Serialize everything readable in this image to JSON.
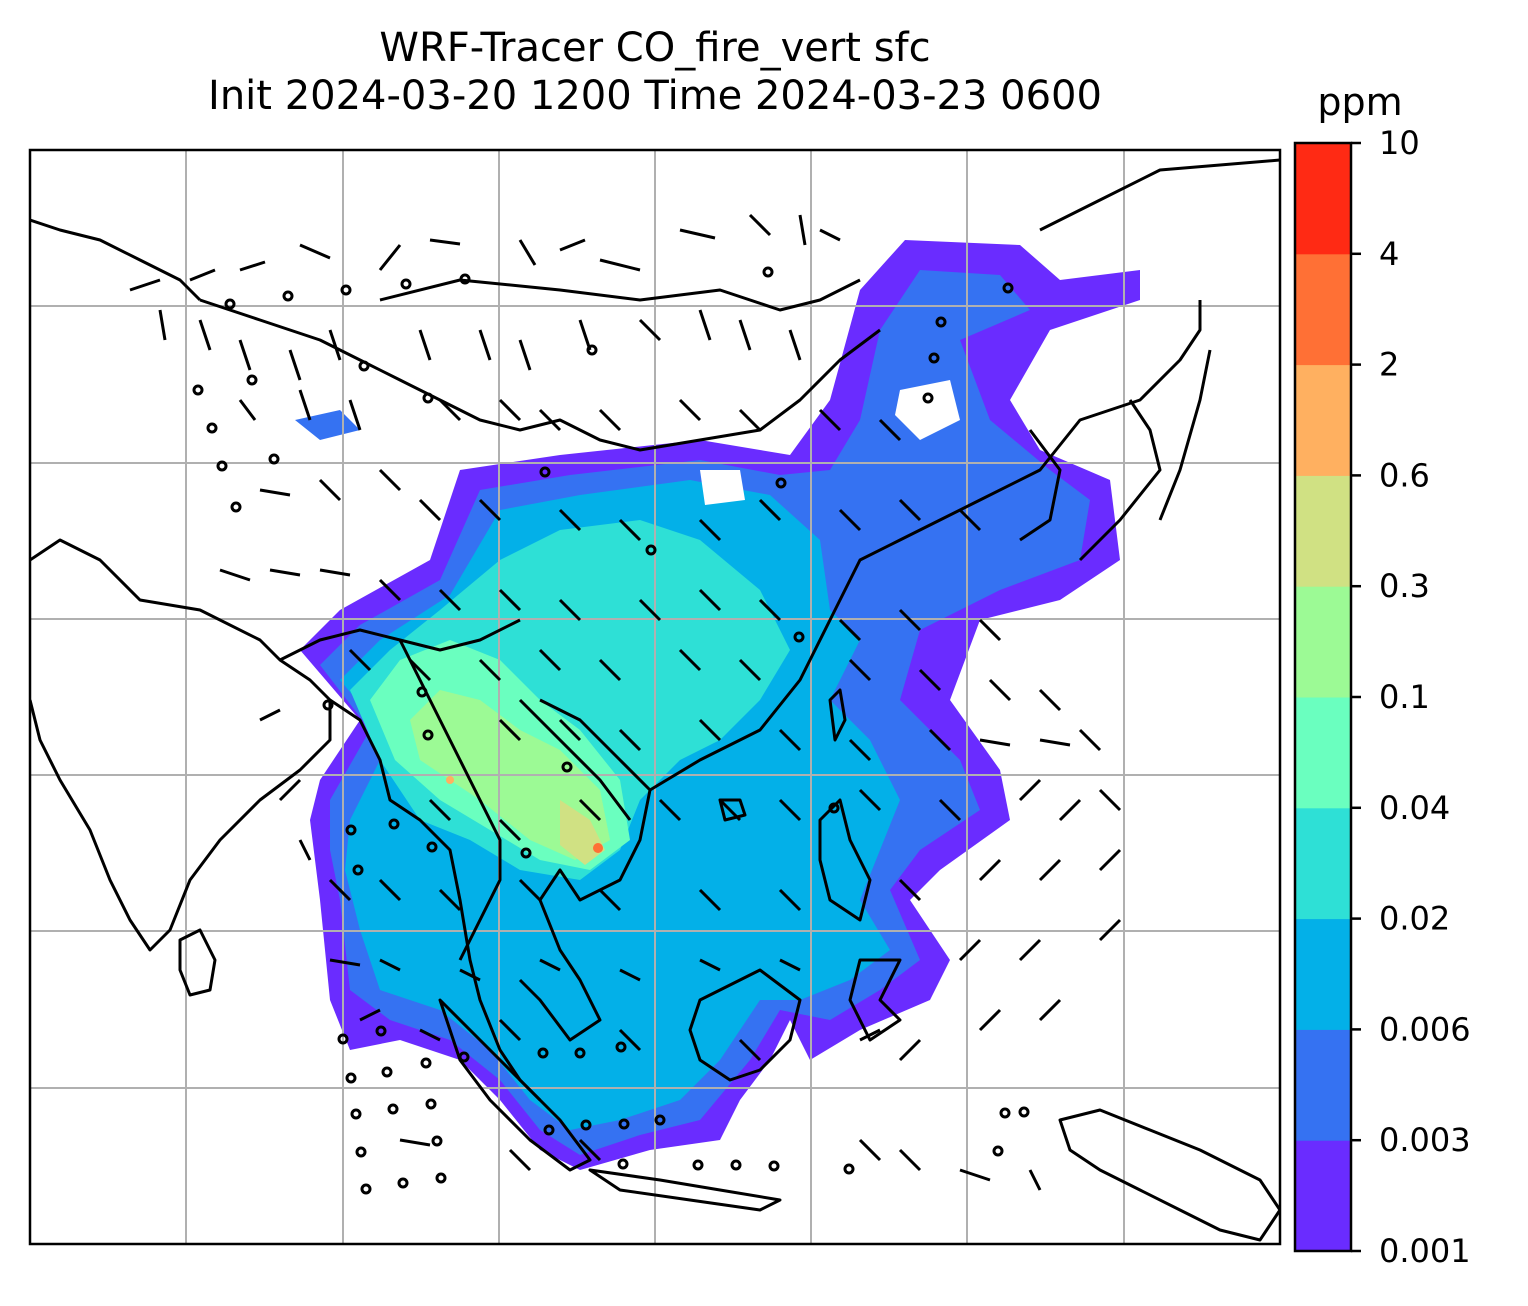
{
  "title": {
    "line1": "WRF-Tracer CO_fire_vert sfc",
    "line2": "Init 2024-03-20 1200 Time 2024-03-23 0600"
  },
  "colorbar": {
    "unit": "ppm",
    "levels": [
      "0.001",
      "0.003",
      "0.006",
      "0.02",
      "0.04",
      "0.1",
      "0.3",
      "0.6",
      "2",
      "4",
      "10"
    ],
    "colors": [
      "#6a2cff",
      "#3572f2",
      "#03b0e8",
      "#2ee0d6",
      "#6affbf",
      "#9cfa95",
      "#d0e183",
      "#ffb060",
      "#ff7035",
      "#ff2a14"
    ]
  },
  "map": {
    "projection": "lat-lon",
    "gridlines": true,
    "grid_color": "#b0b0b0",
    "coastline_color": "#000000",
    "wind_barbs": true
  }
}
